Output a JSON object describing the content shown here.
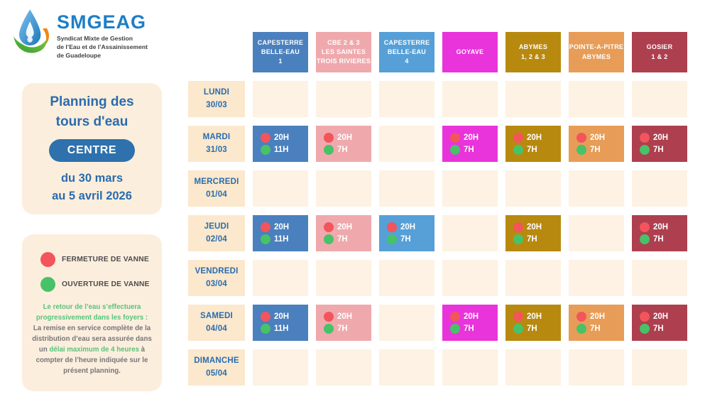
{
  "logo": {
    "name": "SMGEAG",
    "subtitle1": "Syndicat Mixte de Gestion",
    "subtitle2": "de l’Eau et de l’Assainissement",
    "subtitle3": "de Guadeloupe"
  },
  "sidebar": {
    "title_line1": "Planning des",
    "title_line2": "tours d'eau",
    "zone_button": "CENTRE",
    "date_line1": "du 30 mars",
    "date_line2": "au 5 avril 2026"
  },
  "legend": {
    "items": [
      {
        "key": "close",
        "label": "FERMETURE DE VANNE",
        "color": "#f4545c"
      },
      {
        "key": "open",
        "label": "OUVERTURE DE VANNE",
        "color": "#47c268"
      }
    ],
    "note_segments": [
      {
        "text": "Le retour de l’eau s’effectuera progressivement dans les foyers :",
        "green": true
      },
      {
        "text": " La remise en service complète de la distribution d’eau sera assurée dans un ",
        "green": false
      },
      {
        "text": "délai maximum de 4 heures",
        "green": true
      },
      {
        "text": " à compter de l’heure indiquée sur le présent planning.",
        "green": false
      }
    ]
  },
  "colors": {
    "close_dot": "#f4545c",
    "open_dot": "#47c268",
    "empty_cell": "#fdf2e3",
    "day_cell": "#fbe8cd",
    "panel": "#fceedd",
    "blue_text": "#2a6cae",
    "zone_button_bg": "#2e71ad",
    "logo_blue": "#1d7ec6"
  },
  "schedule": {
    "columns": [
      {
        "id": "capesterre-belle-eau-1",
        "lines": [
          "CAPESTERRE",
          "BELLE-EAU",
          "1"
        ],
        "color": "#4a80bd"
      },
      {
        "id": "cbe-2-3-les-saintes-trois-rivieres",
        "lines": [
          "CBE 2 & 3",
          "LES SAINTES",
          "TROIS RIVIERES"
        ],
        "color": "#efa9ad"
      },
      {
        "id": "capesterre-belle-eau-4",
        "lines": [
          "CAPESTERRE",
          "BELLE-EAU",
          "4"
        ],
        "color": "#56a0d7"
      },
      {
        "id": "goyave",
        "lines": [
          "GOYAVE"
        ],
        "color": "#e834da"
      },
      {
        "id": "abymes-1-2-3",
        "lines": [
          "ABYMES",
          "1, 2 & 3"
        ],
        "color": "#b8890f"
      },
      {
        "id": "pointe-a-pitre-abymes",
        "lines": [
          "POINTE-A-PITRE",
          "ABYMES"
        ],
        "color": "#e79d57"
      },
      {
        "id": "gosier-1-2",
        "lines": [
          "GOSIER",
          "1 & 2"
        ],
        "color": "#ae3f4f"
      }
    ],
    "rows": [
      {
        "day": "LUNDI",
        "date": "30/03",
        "cells": [
          null,
          null,
          null,
          null,
          null,
          null,
          null
        ]
      },
      {
        "day": "MARDI",
        "date": "31/03",
        "cells": [
          {
            "close": "20H",
            "open": "11H"
          },
          {
            "close": "20H",
            "open": "7H"
          },
          null,
          {
            "close": "20H",
            "open": "7H"
          },
          {
            "close": "20H",
            "open": "7H"
          },
          {
            "close": "20H",
            "open": "7H"
          },
          {
            "close": "20H",
            "open": "7H"
          }
        ]
      },
      {
        "day": "MERCREDI",
        "date": "01/04",
        "cells": [
          null,
          null,
          null,
          null,
          null,
          null,
          null
        ]
      },
      {
        "day": "JEUDI",
        "date": "02/04",
        "cells": [
          {
            "close": "20H",
            "open": "11H"
          },
          {
            "close": "20H",
            "open": "7H"
          },
          {
            "close": "20H",
            "open": "7H"
          },
          null,
          {
            "close": "20H",
            "open": "7H"
          },
          null,
          {
            "close": "20H",
            "open": "7H"
          }
        ]
      },
      {
        "day": "VENDREDI",
        "date": "03/04",
        "cells": [
          null,
          null,
          null,
          null,
          null,
          null,
          null
        ]
      },
      {
        "day": "SAMEDI",
        "date": "04/04",
        "cells": [
          {
            "close": "20H",
            "open": "11H"
          },
          {
            "close": "20H",
            "open": "7H"
          },
          null,
          {
            "close": "20H",
            "open": "7H"
          },
          {
            "close": "20H",
            "open": "7H"
          },
          {
            "close": "20H",
            "open": "7H"
          },
          {
            "close": "20H",
            "open": "7H"
          }
        ]
      },
      {
        "day": "DIMANCHE",
        "date": "05/04",
        "cells": [
          null,
          null,
          null,
          null,
          null,
          null,
          null
        ]
      }
    ]
  }
}
